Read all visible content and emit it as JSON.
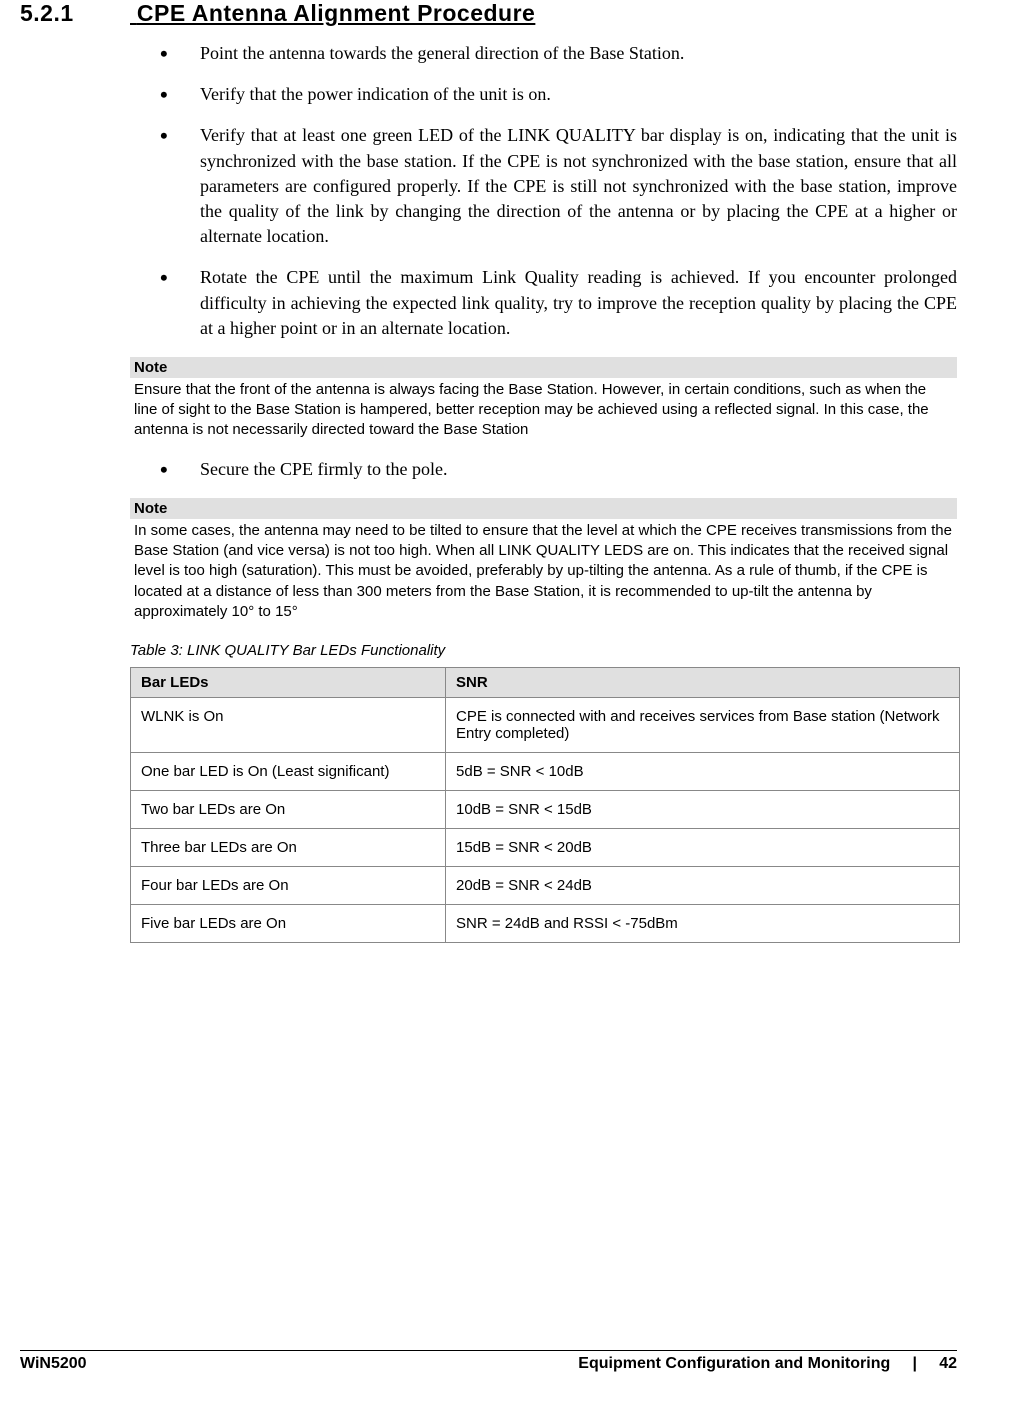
{
  "section": {
    "number": "5.2.1",
    "title": "CPE Antenna Alignment Procedure"
  },
  "bullets1": [
    "Point the antenna towards the general direction of the Base Station.",
    "Verify that the power indication of the unit is on.",
    "Verify that at least one green LED of the LINK QUALITY bar display is on, indicating that the unit is synchronized with the base station. If the CPE is not synchronized with the base station, ensure that all parameters are configured properly. If the CPE is still not synchronized with the base station, improve the quality of the link by changing the direction of the antenna or by placing the CPE at a higher or alternate location.",
    "Rotate the CPE until the maximum Link Quality reading is achieved. If you encounter prolonged difficulty in achieving the expected link quality, try to improve the reception quality by placing the CPE at a higher point or in an alternate location."
  ],
  "note1": {
    "header": "Note",
    "body": "Ensure that the front of the antenna is always facing the Base Station. However, in certain conditions, such as when the line of sight to the Base Station is hampered, better reception may be achieved using a reflected signal. In this case, the antenna is not necessarily directed toward the Base Station"
  },
  "bullets2": [
    "Secure the CPE firmly to the pole."
  ],
  "note2": {
    "header": "Note",
    "body": "In some cases, the antenna may need to be tilted to ensure that the level at which the CPE receives transmissions from the Base Station (and vice versa) is not too high. When all LINK QUALITY LEDS are on. This indicates that the received signal level is too high (saturation). This must be avoided, preferably by up-tilting the antenna. As a rule of thumb, if the CPE is located at a distance of less than 300 meters from the Base Station, it is recommended to up-tilt the antenna by approximately 10° to 15°"
  },
  "table": {
    "caption": "Table 3: LINK QUALITY Bar LEDs Functionality",
    "columns": [
      "Bar LEDs",
      "SNR"
    ],
    "rows": [
      [
        "WLNK is On",
        "CPE is connected with and receives services from Base station (Network Entry completed)"
      ],
      [
        "One bar LED  is On (Least significant)",
        "5dB = SNR < 10dB"
      ],
      [
        "Two bar LEDs are On",
        "10dB = SNR < 15dB"
      ],
      [
        "Three bar LEDs are On",
        "15dB = SNR < 20dB"
      ],
      [
        "Four bar LEDs are On",
        "20dB = SNR < 24dB"
      ],
      [
        "Five bar LEDs are On",
        "SNR = 24dB and RSSI < -75dBm"
      ]
    ]
  },
  "footer": {
    "left": "WiN5200",
    "center": "Equipment Configuration and Monitoring",
    "separator": "|",
    "page": "42"
  }
}
